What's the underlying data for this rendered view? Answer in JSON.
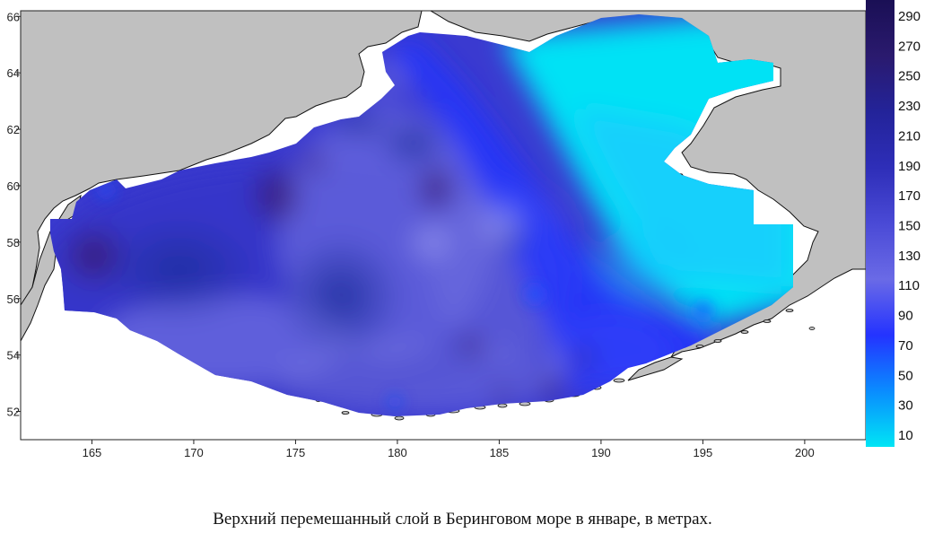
{
  "caption": "Верхний перемешанный слой в Беринговом море в январе, в метрах.",
  "map": {
    "x_range": [
      161.5,
      203
    ],
    "y_range": [
      51,
      66.2
    ],
    "x_ticks": [
      165,
      170,
      175,
      180,
      185,
      190,
      195,
      200
    ],
    "y_ticks": [
      52,
      54,
      56,
      58,
      60,
      62,
      64,
      66
    ],
    "land_color": "#c0c0c0",
    "coast_color": "#111111"
  },
  "colorbar": {
    "ticks": [
      10,
      30,
      50,
      70,
      90,
      110,
      130,
      150,
      170,
      190,
      210,
      230,
      250,
      270,
      290
    ],
    "colors": [
      "#00e5f5",
      "#0a8cff",
      "#2433ff",
      "#6a6ae6",
      "#4a4ad6",
      "#2e2eb8",
      "#232399",
      "#2a1a6e",
      "#1a0f55"
    ]
  }
}
